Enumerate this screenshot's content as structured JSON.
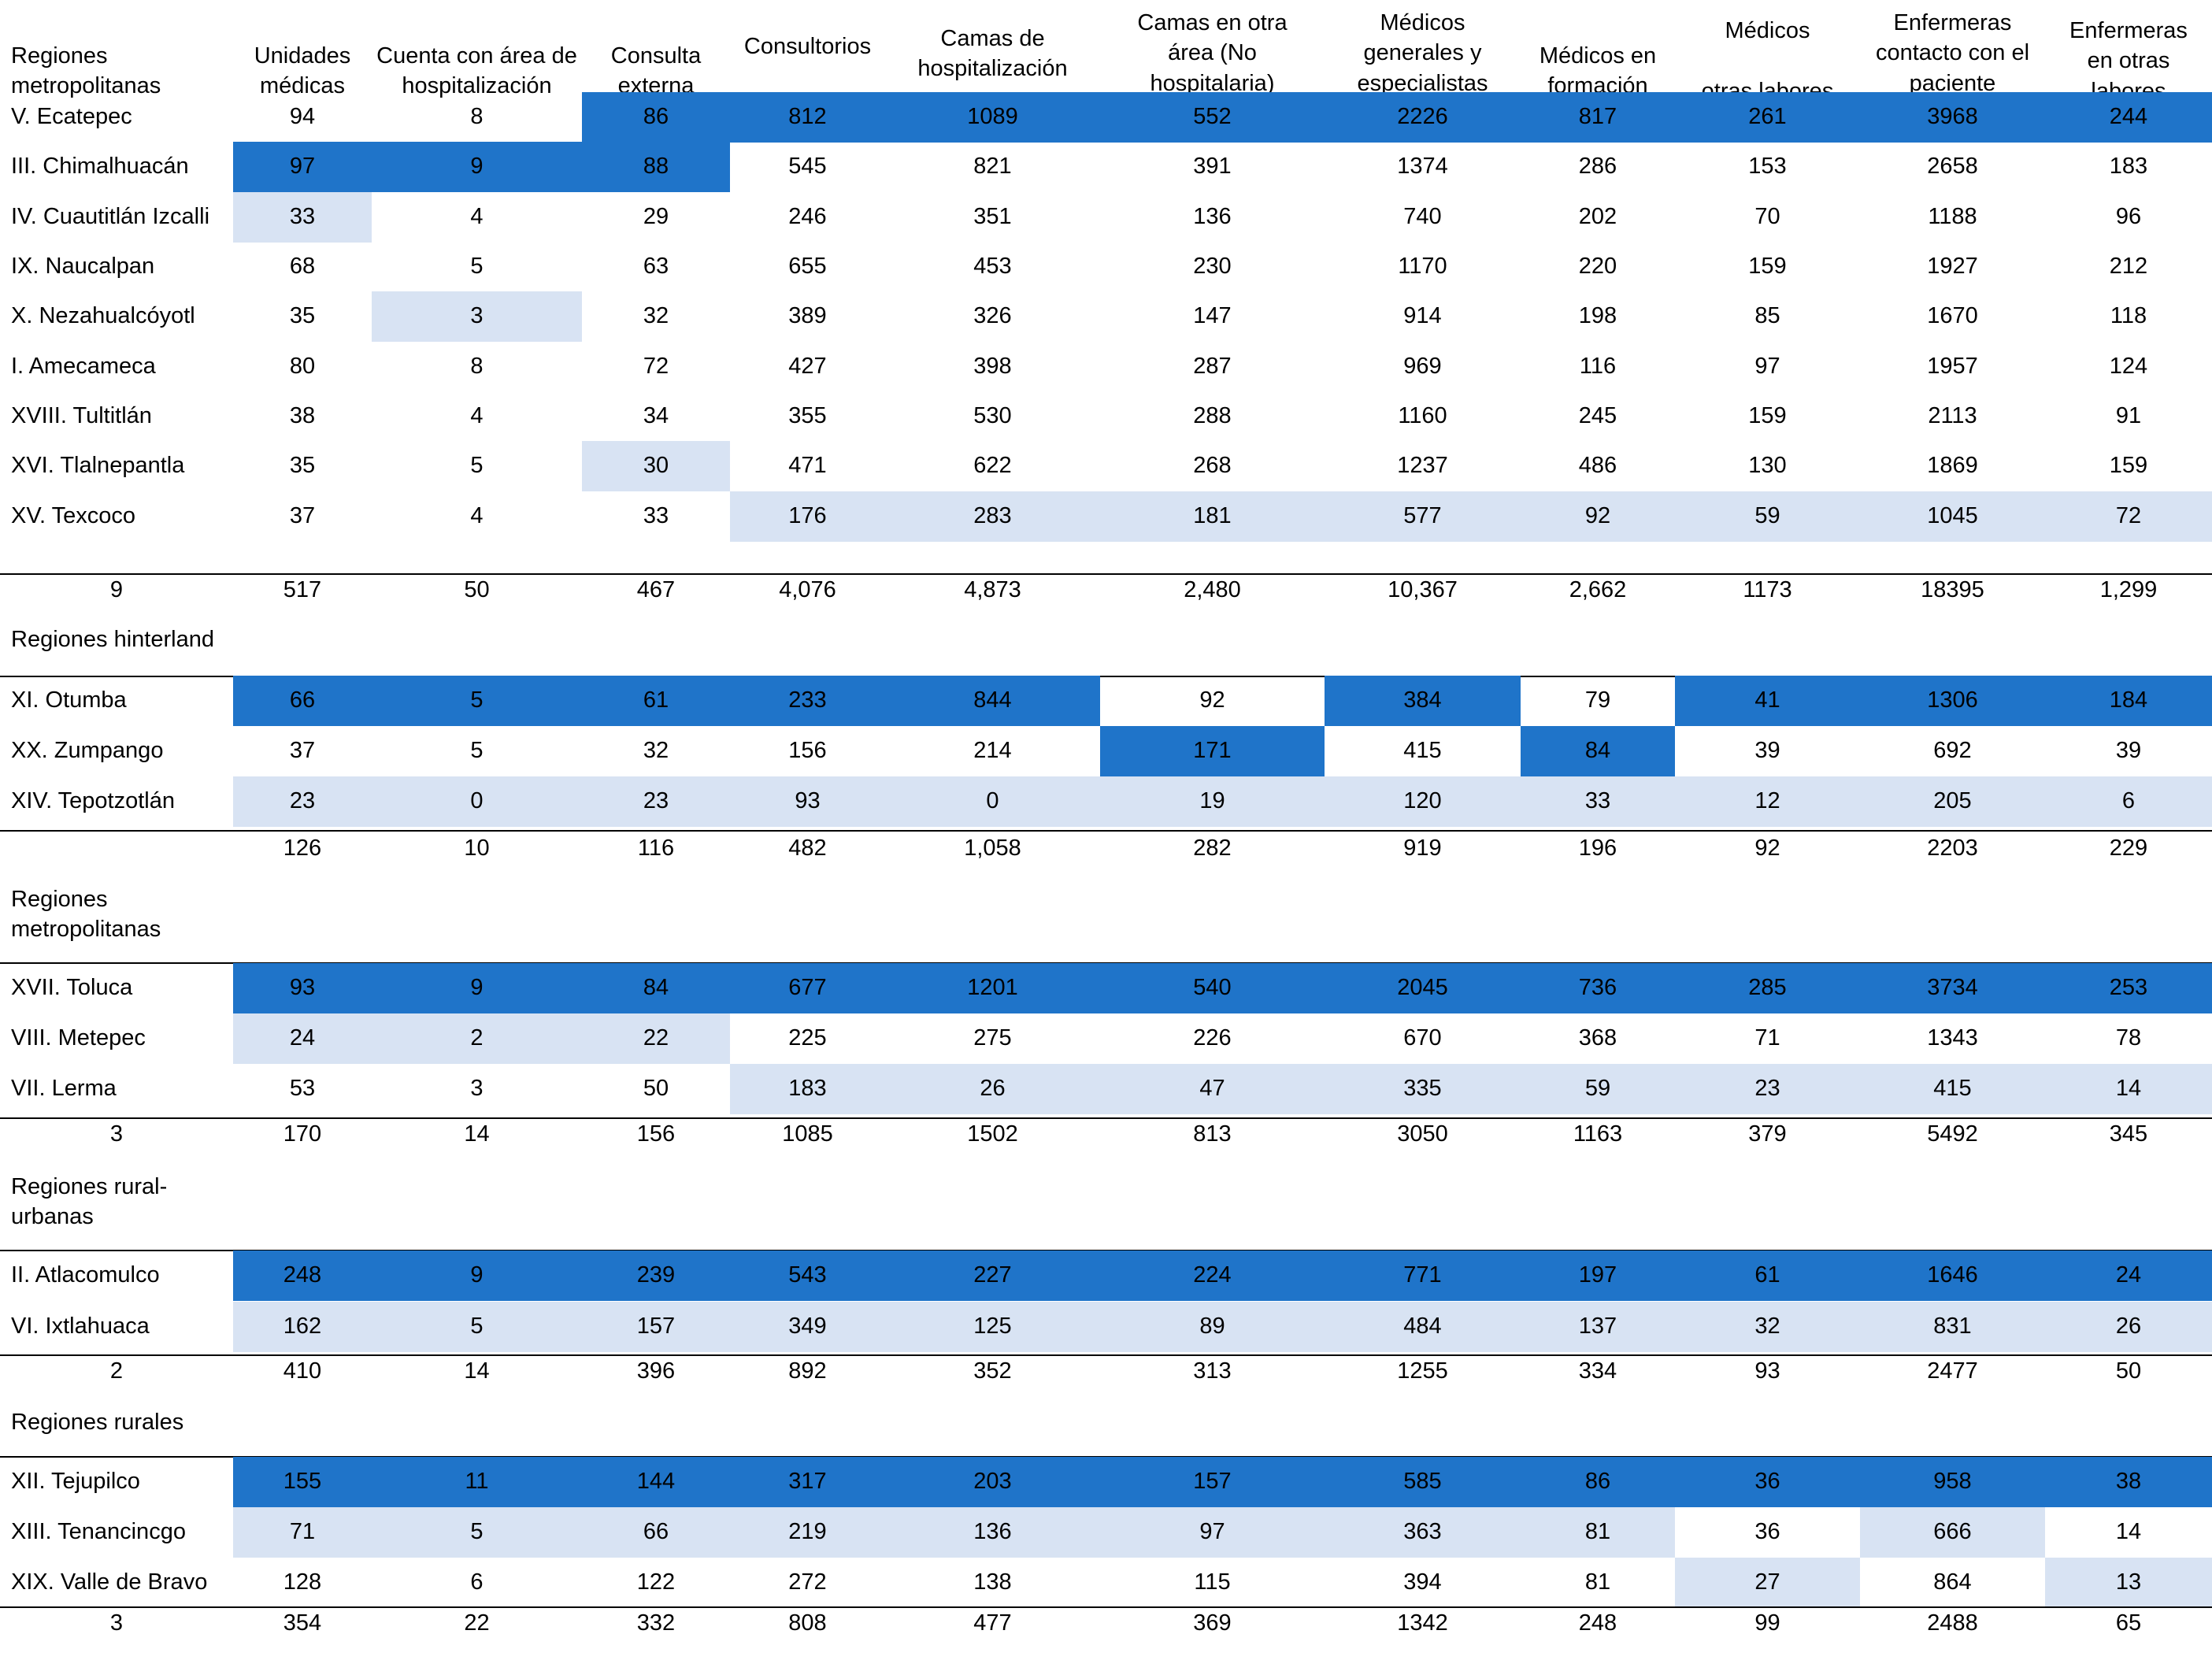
{
  "colors": {
    "highlight_dark": "#1f74c9",
    "highlight_light": "#d8e3f3"
  },
  "headers": [
    "Regiones\nmetropolitanas",
    "Unidades\nmédicas",
    "Cuenta con área de\nhospitalización",
    "Consulta\nexterna",
    "Consultorios",
    "Camas de\nhospitalización",
    "Camas en otra\nárea (No\nhospitalaria)",
    "Médicos\ngenerales y\nespecialistas",
    "Médicos en\nformación",
    "Médicos\n\notras labores",
    "Enfermeras\ncontacto con el\npaciente",
    "Enfermeras\nen otras\nlabores"
  ],
  "sections": [
    {
      "label": "",
      "rows": [
        {
          "cells": [
            "V. Ecatepec",
            "94",
            "8",
            "86",
            "812",
            "1089",
            "552",
            "2226",
            "817",
            "261",
            "3968",
            "244"
          ],
          "hl": "...ddddddddd"
        },
        {
          "cells": [
            "III. Chimalhuacán",
            "97",
            "9",
            "88",
            "545",
            "821",
            "391",
            "1374",
            "286",
            "153",
            "2658",
            "183"
          ],
          "hl": ".ddd........"
        },
        {
          "cells": [
            "IV. Cuautitlán Izcalli",
            "33",
            "4",
            "29",
            "246",
            "351",
            "136",
            "740",
            "202",
            "70",
            "1188",
            "96"
          ],
          "hl": ".l.........."
        },
        {
          "cells": [
            "IX. Naucalpan",
            "68",
            "5",
            "63",
            "655",
            "453",
            "230",
            "1170",
            "220",
            "159",
            "1927",
            "212"
          ],
          "hl": "............"
        },
        {
          "cells": [
            "X. Nezahualcóyotl",
            "35",
            "3",
            "32",
            "389",
            "326",
            "147",
            "914",
            "198",
            "85",
            "1670",
            "118"
          ],
          "hl": "..l........."
        },
        {
          "cells": [
            "I. Amecameca",
            "80",
            "8",
            "72",
            "427",
            "398",
            "287",
            "969",
            "116",
            "97",
            "1957",
            "124"
          ],
          "hl": "............"
        },
        {
          "cells": [
            "XVIII. Tultitlán",
            "38",
            "4",
            "34",
            "355",
            "530",
            "288",
            "1160",
            "245",
            "159",
            "2113",
            "91"
          ],
          "hl": "............"
        },
        {
          "cells": [
            "XVI. Tlalnepantla",
            "35",
            "5",
            "30",
            "471",
            "622",
            "268",
            "1237",
            "486",
            "130",
            "1869",
            "159"
          ],
          "hl": "...l........"
        },
        {
          "cells": [
            "XV. Texcoco",
            "37",
            "4",
            "33",
            "176",
            "283",
            "181",
            "577",
            "92",
            "59",
            "1045",
            "72"
          ],
          "hl": "....llllllll"
        }
      ],
      "total": [
        "9",
        "517",
        "50",
        "467",
        "4,076",
        "4,873",
        "2,480",
        "10,367",
        "2,662",
        "1173",
        "18395",
        "1,299"
      ]
    },
    {
      "label": "Regiones hinterland",
      "rows": [
        {
          "cells": [
            "XI. Otumba",
            "66",
            "5",
            "61",
            "233",
            "844",
            "92",
            "384",
            "79",
            "41",
            "1306",
            "184"
          ],
          "hl": ".ddddd.d.ddd"
        },
        {
          "cells": [
            "XX. Zumpango",
            "37",
            "5",
            "32",
            "156",
            "214",
            "171",
            "415",
            "84",
            "39",
            "692",
            "39"
          ],
          "hl": "......d.d..."
        },
        {
          "cells": [
            "XIV. Tepotzotlán",
            "23",
            "0",
            "23",
            "93",
            "0",
            "19",
            "120",
            "33",
            "12",
            "205",
            "6"
          ],
          "hl": ".lllllllllll"
        }
      ],
      "total": [
        "",
        "126",
        "10",
        "116",
        "482",
        "1,058",
        "282",
        "919",
        "196",
        "92",
        "2203",
        "229"
      ]
    },
    {
      "label": "Regiones\nmetropolitanas",
      "rows": [
        {
          "cells": [
            "XVII. Toluca",
            "93",
            "9",
            "84",
            "677",
            "1201",
            "540",
            "2045",
            "736",
            "285",
            "3734",
            "253"
          ],
          "hl": ".ddddddddddd"
        },
        {
          "cells": [
            "VIII. Metepec",
            "24",
            "2",
            "22",
            "225",
            "275",
            "226",
            "670",
            "368",
            "71",
            "1343",
            "78"
          ],
          "hl": ".lll........"
        },
        {
          "cells": [
            "VII. Lerma",
            "53",
            "3",
            "50",
            "183",
            "26",
            "47",
            "335",
            "59",
            "23",
            "415",
            "14"
          ],
          "hl": "....llllllll"
        }
      ],
      "total": [
        "3",
        "170",
        "14",
        "156",
        "1085",
        "1502",
        "813",
        "3050",
        "1163",
        "379",
        "5492",
        "345"
      ]
    },
    {
      "label": "Regiones          rural-\nurbanas",
      "rows": [
        {
          "cells": [
            "II. Atlacomulco",
            "248",
            "9",
            "239",
            "543",
            "227",
            "224",
            "771",
            "197",
            "61",
            "1646",
            "24"
          ],
          "hl": ".ddddddddddd"
        },
        {
          "cells": [
            "VI. Ixtlahuaca",
            "162",
            "5",
            "157",
            "349",
            "125",
            "89",
            "484",
            "137",
            "32",
            "831",
            "26"
          ],
          "hl": ".lllllllllll"
        }
      ],
      "total": [
        "2",
        "410",
        "14",
        "396",
        "892",
        "352",
        "313",
        "1255",
        "334",
        "93",
        "2477",
        "50"
      ]
    },
    {
      "label": "Regiones rurales",
      "rows": [
        {
          "cells": [
            "XII. Tejupilco",
            "155",
            "11",
            "144",
            "317",
            "203",
            "157",
            "585",
            "86",
            "36",
            "958",
            "38"
          ],
          "hl": ".ddddddddddd"
        },
        {
          "cells": [
            "XIII. Tenancincgo",
            "71",
            "5",
            "66",
            "219",
            "136",
            "97",
            "363",
            "81",
            "36",
            "666",
            "14"
          ],
          "hl": ".llllllll.l."
        },
        {
          "cells": [
            "XIX.  Valle de Bravo",
            "128",
            "6",
            "122",
            "272",
            "138",
            "115",
            "394",
            "81",
            "27",
            "864",
            "13"
          ],
          "hl": ".........l.l"
        }
      ],
      "total": [
        "3",
        "354",
        "22",
        "332",
        "808",
        "477",
        "369",
        "1342",
        "248",
        "99",
        "2488",
        "65"
      ]
    }
  ]
}
